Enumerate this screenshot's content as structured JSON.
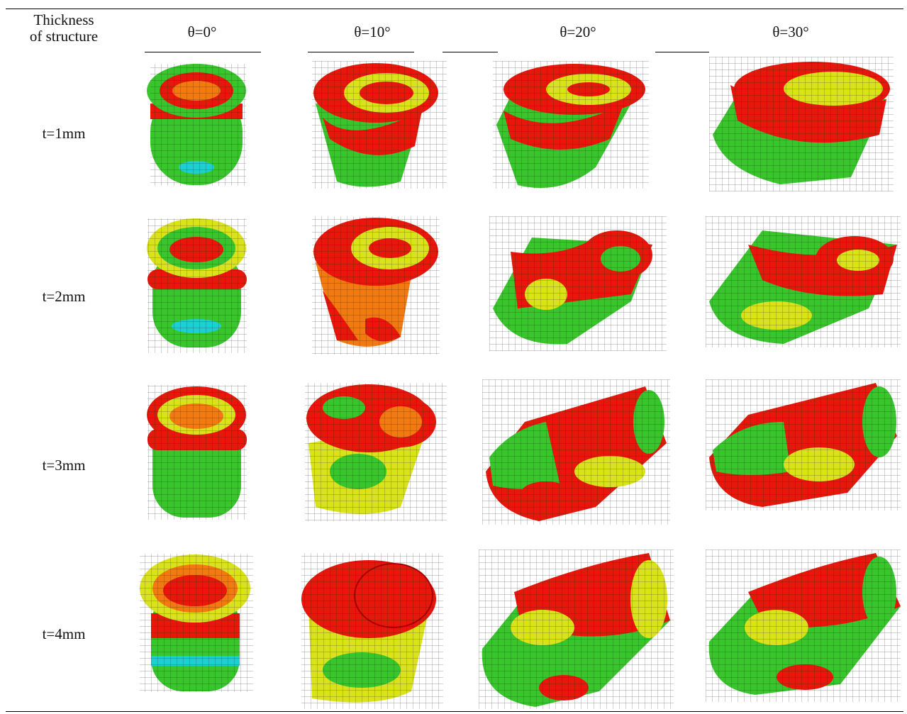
{
  "table": {
    "header": {
      "thickness_label_line1": "Thickness",
      "thickness_label_line2": "of structure",
      "angles": [
        "θ=0°",
        "θ=10°",
        "θ=20°",
        "θ=30°"
      ]
    },
    "rows": [
      {
        "label": "t=1mm"
      },
      {
        "label": "t=2mm"
      },
      {
        "label": "t=3mm"
      },
      {
        "label": "t=4mm"
      }
    ]
  },
  "colors": {
    "red": "#e8170c",
    "orange": "#f37a10",
    "yellow": "#d9e21a",
    "green": "#39c62c",
    "cyan": "#1ecfd2",
    "blue": "#1446e0"
  }
}
